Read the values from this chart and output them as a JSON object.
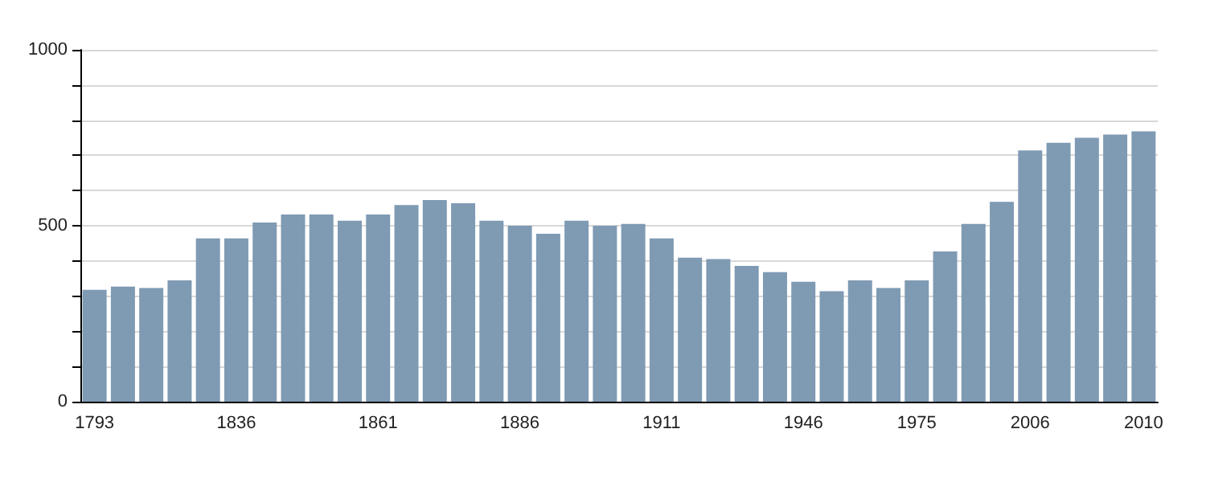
{
  "chart_data": {
    "type": "bar",
    "categories": [
      "1793",
      null,
      null,
      null,
      null,
      "1836",
      null,
      null,
      null,
      null,
      "1861",
      null,
      null,
      null,
      null,
      "1886",
      null,
      null,
      null,
      null,
      "1911",
      null,
      null,
      null,
      null,
      "1946",
      null,
      null,
      null,
      "1975",
      null,
      null,
      null,
      "2006",
      null,
      null,
      null,
      "2010"
    ],
    "values": [
      318,
      327,
      323,
      345,
      464,
      464,
      509,
      532,
      532,
      514,
      532,
      559,
      573,
      564,
      514,
      500,
      477,
      514,
      500,
      505,
      464,
      409,
      405,
      386,
      368,
      341,
      314,
      345,
      323,
      345,
      427,
      505,
      568,
      714,
      736,
      750,
      759,
      768
    ],
    "color": "#7f9ab3",
    "ylim": [
      0,
      1000
    ],
    "yticks": [
      0,
      {
        "value": 100,
        "label": null
      },
      {
        "value": 200,
        "label": null
      },
      {
        "value": 300,
        "label": null
      },
      {
        "value": 400,
        "label": null
      },
      500,
      {
        "value": 600,
        "label": null
      },
      {
        "value": 700,
        "label": null
      },
      {
        "value": 800,
        "label": null
      },
      {
        "value": 900,
        "label": null
      },
      1000
    ],
    "grid": true
  }
}
